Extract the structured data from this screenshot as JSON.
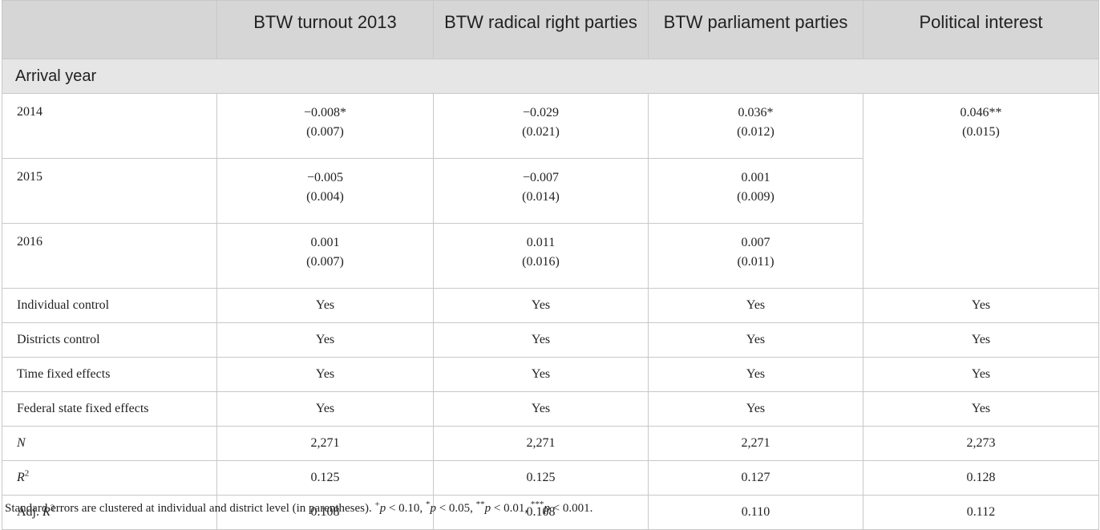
{
  "headers": [
    "",
    "BTW turnout 2013",
    "BTW radical right parties",
    "BTW parliament parties",
    "Political interest"
  ],
  "group_label": "Arrival year",
  "years": [
    {
      "label": "2014",
      "turnout": {
        "est": "−0.008*",
        "se": "(0.007)"
      },
      "radical": {
        "est": "−0.029",
        "se": "(0.021)"
      },
      "parliament": {
        "est": "0.036*",
        "se": "(0.012)"
      }
    },
    {
      "label": "2015",
      "turnout": {
        "est": "−0.005",
        "se": "(0.004)"
      },
      "radical": {
        "est": "−0.007",
        "se": "(0.014)"
      },
      "parliament": {
        "est": "0.001",
        "se": "(0.009)"
      }
    },
    {
      "label": "2016",
      "turnout": {
        "est": "0.001",
        "se": "(0.007)"
      },
      "radical": {
        "est": "0.011",
        "se": "(0.016)"
      },
      "parliament": {
        "est": "0.007",
        "se": "(0.011)"
      }
    }
  ],
  "political_interest_arrival": {
    "est": "0.046**",
    "se": "(0.015)"
  },
  "controls": [
    {
      "label": "Individual control",
      "values": [
        "Yes",
        "Yes",
        "Yes",
        "Yes"
      ]
    },
    {
      "label": "Districts control",
      "values": [
        "Yes",
        "Yes",
        "Yes",
        "Yes"
      ]
    },
    {
      "label": "Time fixed effects",
      "values": [
        "Yes",
        "Yes",
        "Yes",
        "Yes"
      ]
    },
    {
      "label": "Federal state fixed effects",
      "values": [
        "Yes",
        "Yes",
        "Yes",
        "Yes"
      ]
    }
  ],
  "stats": {
    "n": {
      "label": "N",
      "values": [
        "2,271",
        "2,271",
        "2,271",
        "2,273"
      ]
    },
    "r2": {
      "label": "R",
      "sup": "2",
      "values": [
        "0.125",
        "0.125",
        "0.127",
        "0.128"
      ]
    },
    "adj_r2": {
      "prefix": "Adj. ",
      "label": "R",
      "sup": "2",
      "values": [
        "0.108",
        "0.108",
        "0.110",
        "0.112"
      ]
    }
  },
  "note": {
    "text": "Standard errors are clustered at individual and district level (in parentheses).",
    "p_symbol": "p",
    "sig": [
      {
        "mark": "+",
        "cond": " < 0.10,"
      },
      {
        "mark": "*",
        "cond": " < 0.05,"
      },
      {
        "mark": "**",
        "cond": " < 0.01,"
      },
      {
        "mark": "***",
        "cond": " < 0.001."
      }
    ]
  }
}
